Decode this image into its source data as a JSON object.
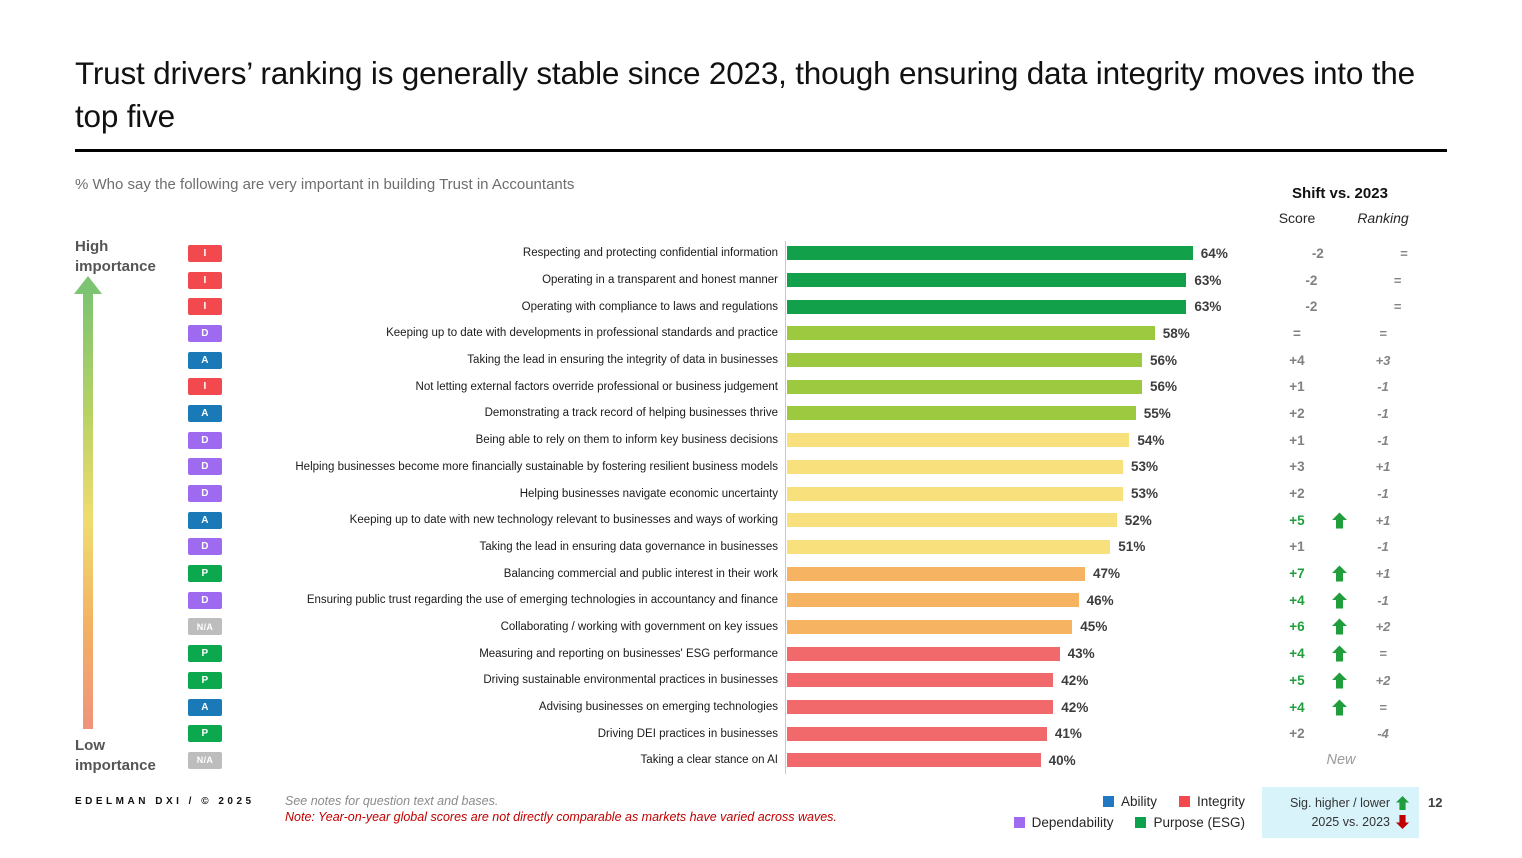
{
  "slide": {
    "title": "Trust drivers’ ranking is generally stable since 2023, though ensuring data integrity moves into the top five",
    "subtitle": "% Who say the following are very important in building Trust in Accountants",
    "page_number": "12"
  },
  "shift_header": {
    "title": "Shift vs. 2023",
    "score_label": "Score",
    "ranking_label": "Ranking"
  },
  "importance_axis": {
    "high_label": "High importance",
    "low_label": "Low importance"
  },
  "footer": {
    "brand": "EDELMAN DXI / © 2025",
    "note1": "See notes for question text and bases.",
    "note2": "Note: Year-on-year global scores are not directly comparable as markets have varied across waves."
  },
  "legend": {
    "rows": [
      [
        {
          "label": "Ability",
          "color": "#1f78c1"
        },
        {
          "label": "Integrity",
          "color": "#f2494f"
        }
      ],
      [
        {
          "label": "Dependability",
          "color": "#9e6bf0"
        },
        {
          "label": "Purpose (ESG)",
          "color": "#0ca14d"
        }
      ]
    ]
  },
  "sig_box": {
    "line1": "Sig. higher / lower",
    "line2": "2025 vs. 2023",
    "up_color": "#1f9e3b",
    "down_color": "#c00000",
    "bg": "#d9f3fb"
  },
  "category_colors": {
    "I": "#f2494f",
    "D": "#9e6bf0",
    "A": "#1a7ab8",
    "P": "#0ba84e",
    "N/A": "#bdbdbd"
  },
  "chart_data": {
    "type": "bar",
    "orientation": "horizontal",
    "value_unit": "%",
    "xlim": [
      0,
      66
    ],
    "title": "% Who say the following are very important in building Trust in Accountants",
    "columns": [
      "category",
      "driver",
      "pct_very_important",
      "shift_score",
      "shift_ranking"
    ],
    "rows": [
      {
        "category": "I",
        "label": "Respecting and protecting confidential information",
        "value": 64,
        "bar_color": "#13a04a",
        "shift_score": "-2",
        "shift_ranking": "=",
        "sig": false,
        "new": false
      },
      {
        "category": "I",
        "label": "Operating in a transparent and honest manner",
        "value": 63,
        "bar_color": "#13a04a",
        "shift_score": "-2",
        "shift_ranking": "=",
        "sig": false,
        "new": false
      },
      {
        "category": "I",
        "label": "Operating with compliance to laws and regulations",
        "value": 63,
        "bar_color": "#13a04a",
        "shift_score": "-2",
        "shift_ranking": "=",
        "sig": false,
        "new": false
      },
      {
        "category": "D",
        "label": "Keeping up to date with developments in professional standards and practice",
        "value": 58,
        "bar_color": "#9cc940",
        "shift_score": "=",
        "shift_ranking": "=",
        "sig": false,
        "new": false
      },
      {
        "category": "A",
        "label": "Taking the lead in ensuring the integrity of data in businesses",
        "value": 56,
        "bar_color": "#9cc940",
        "shift_score": "+4",
        "shift_ranking": "+3",
        "sig": false,
        "new": false
      },
      {
        "category": "I",
        "label": "Not letting external factors override professional or business judgement",
        "value": 56,
        "bar_color": "#9cc940",
        "shift_score": "+1",
        "shift_ranking": "-1",
        "sig": false,
        "new": false
      },
      {
        "category": "A",
        "label": "Demonstrating a track record of helping businesses thrive",
        "value": 55,
        "bar_color": "#9cc940",
        "shift_score": "+2",
        "shift_ranking": "-1",
        "sig": false,
        "new": false
      },
      {
        "category": "D",
        "label": "Being able to rely on them to inform key business decisions",
        "value": 54,
        "bar_color": "#f8e17c",
        "shift_score": "+1",
        "shift_ranking": "-1",
        "sig": false,
        "new": false
      },
      {
        "category": "D",
        "label": "Helping businesses become more financially sustainable by fostering resilient business models",
        "value": 53,
        "bar_color": "#f8e17c",
        "shift_score": "+3",
        "shift_ranking": "+1",
        "sig": false,
        "new": false
      },
      {
        "category": "D",
        "label": "Helping businesses navigate economic uncertainty",
        "value": 53,
        "bar_color": "#f8e17c",
        "shift_score": "+2",
        "shift_ranking": "-1",
        "sig": false,
        "new": false
      },
      {
        "category": "A",
        "label": "Keeping up to date with new technology relevant to businesses and ways of working",
        "value": 52,
        "bar_color": "#f8e17c",
        "shift_score": "+5",
        "shift_ranking": "+1",
        "sig": true,
        "new": false
      },
      {
        "category": "D",
        "label": "Taking the lead in ensuring data governance in businesses",
        "value": 51,
        "bar_color": "#f8e17c",
        "shift_score": "+1",
        "shift_ranking": "-1",
        "sig": false,
        "new": false
      },
      {
        "category": "P",
        "label": "Balancing commercial and public interest in their work",
        "value": 47,
        "bar_color": "#f6b463",
        "shift_score": "+7",
        "shift_ranking": "+1",
        "sig": true,
        "new": false
      },
      {
        "category": "D",
        "label": "Ensuring public trust regarding the use of emerging technologies in accountancy and finance",
        "value": 46,
        "bar_color": "#f6b463",
        "shift_score": "+4",
        "shift_ranking": "-1",
        "sig": true,
        "new": false
      },
      {
        "category": "N/A",
        "label": "Collaborating / working with government on key issues",
        "value": 45,
        "bar_color": "#f6b463",
        "shift_score": "+6",
        "shift_ranking": "+2",
        "sig": true,
        "new": false
      },
      {
        "category": "P",
        "label": "Measuring and reporting on businesses' ESG performance",
        "value": 43,
        "bar_color": "#f2696b",
        "shift_score": "+4",
        "shift_ranking": "=",
        "sig": true,
        "new": false
      },
      {
        "category": "P",
        "label": "Driving sustainable environmental practices in businesses",
        "value": 42,
        "bar_color": "#f2696b",
        "shift_score": "+5",
        "shift_ranking": "+2",
        "sig": true,
        "new": false
      },
      {
        "category": "A",
        "label": "Advising businesses on emerging technologies",
        "value": 42,
        "bar_color": "#f2696b",
        "shift_score": "+4",
        "shift_ranking": "=",
        "sig": true,
        "new": false
      },
      {
        "category": "P",
        "label": "Driving DEI practices in businesses",
        "value": 41,
        "bar_color": "#f2696b",
        "shift_score": "+2",
        "shift_ranking": "-4",
        "sig": false,
        "new": false
      },
      {
        "category": "N/A",
        "label": "Taking a clear stance on AI",
        "value": 40,
        "bar_color": "#f2696b",
        "shift_score": "New",
        "shift_ranking": "",
        "sig": false,
        "new": true
      }
    ]
  }
}
